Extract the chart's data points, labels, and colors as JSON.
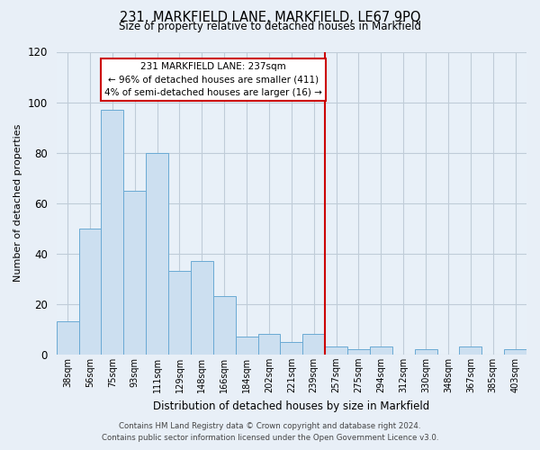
{
  "title": "231, MARKFIELD LANE, MARKFIELD, LE67 9PQ",
  "subtitle": "Size of property relative to detached houses in Markfield",
  "xlabel": "Distribution of detached houses by size in Markfield",
  "ylabel": "Number of detached properties",
  "bar_labels": [
    "38sqm",
    "56sqm",
    "75sqm",
    "93sqm",
    "111sqm",
    "129sqm",
    "148sqm",
    "166sqm",
    "184sqm",
    "202sqm",
    "221sqm",
    "239sqm",
    "257sqm",
    "275sqm",
    "294sqm",
    "312sqm",
    "330sqm",
    "348sqm",
    "367sqm",
    "385sqm",
    "403sqm"
  ],
  "bar_heights": [
    13,
    50,
    97,
    65,
    80,
    33,
    37,
    23,
    7,
    8,
    5,
    8,
    3,
    2,
    3,
    0,
    2,
    0,
    3,
    0,
    2
  ],
  "bar_color": "#ccdff0",
  "bar_edge_color": "#6aaad4",
  "vline_x": 11.5,
  "vline_color": "#cc0000",
  "ylim": [
    0,
    120
  ],
  "yticks": [
    0,
    20,
    40,
    60,
    80,
    100,
    120
  ],
  "annotation_title": "231 MARKFIELD LANE: 237sqm",
  "annotation_line1": "← 96% of detached houses are smaller (411)",
  "annotation_line2": "4% of semi-detached houses are larger (16) →",
  "annotation_box_facecolor": "#ffffff",
  "annotation_box_edgecolor": "#cc0000",
  "footer1": "Contains HM Land Registry data © Crown copyright and database right 2024.",
  "footer2": "Contains public sector information licensed under the Open Government Licence v3.0.",
  "bg_color": "#e8eff7",
  "plot_bg_color": "#e8f0f8",
  "grid_color": "#c0ccd8"
}
